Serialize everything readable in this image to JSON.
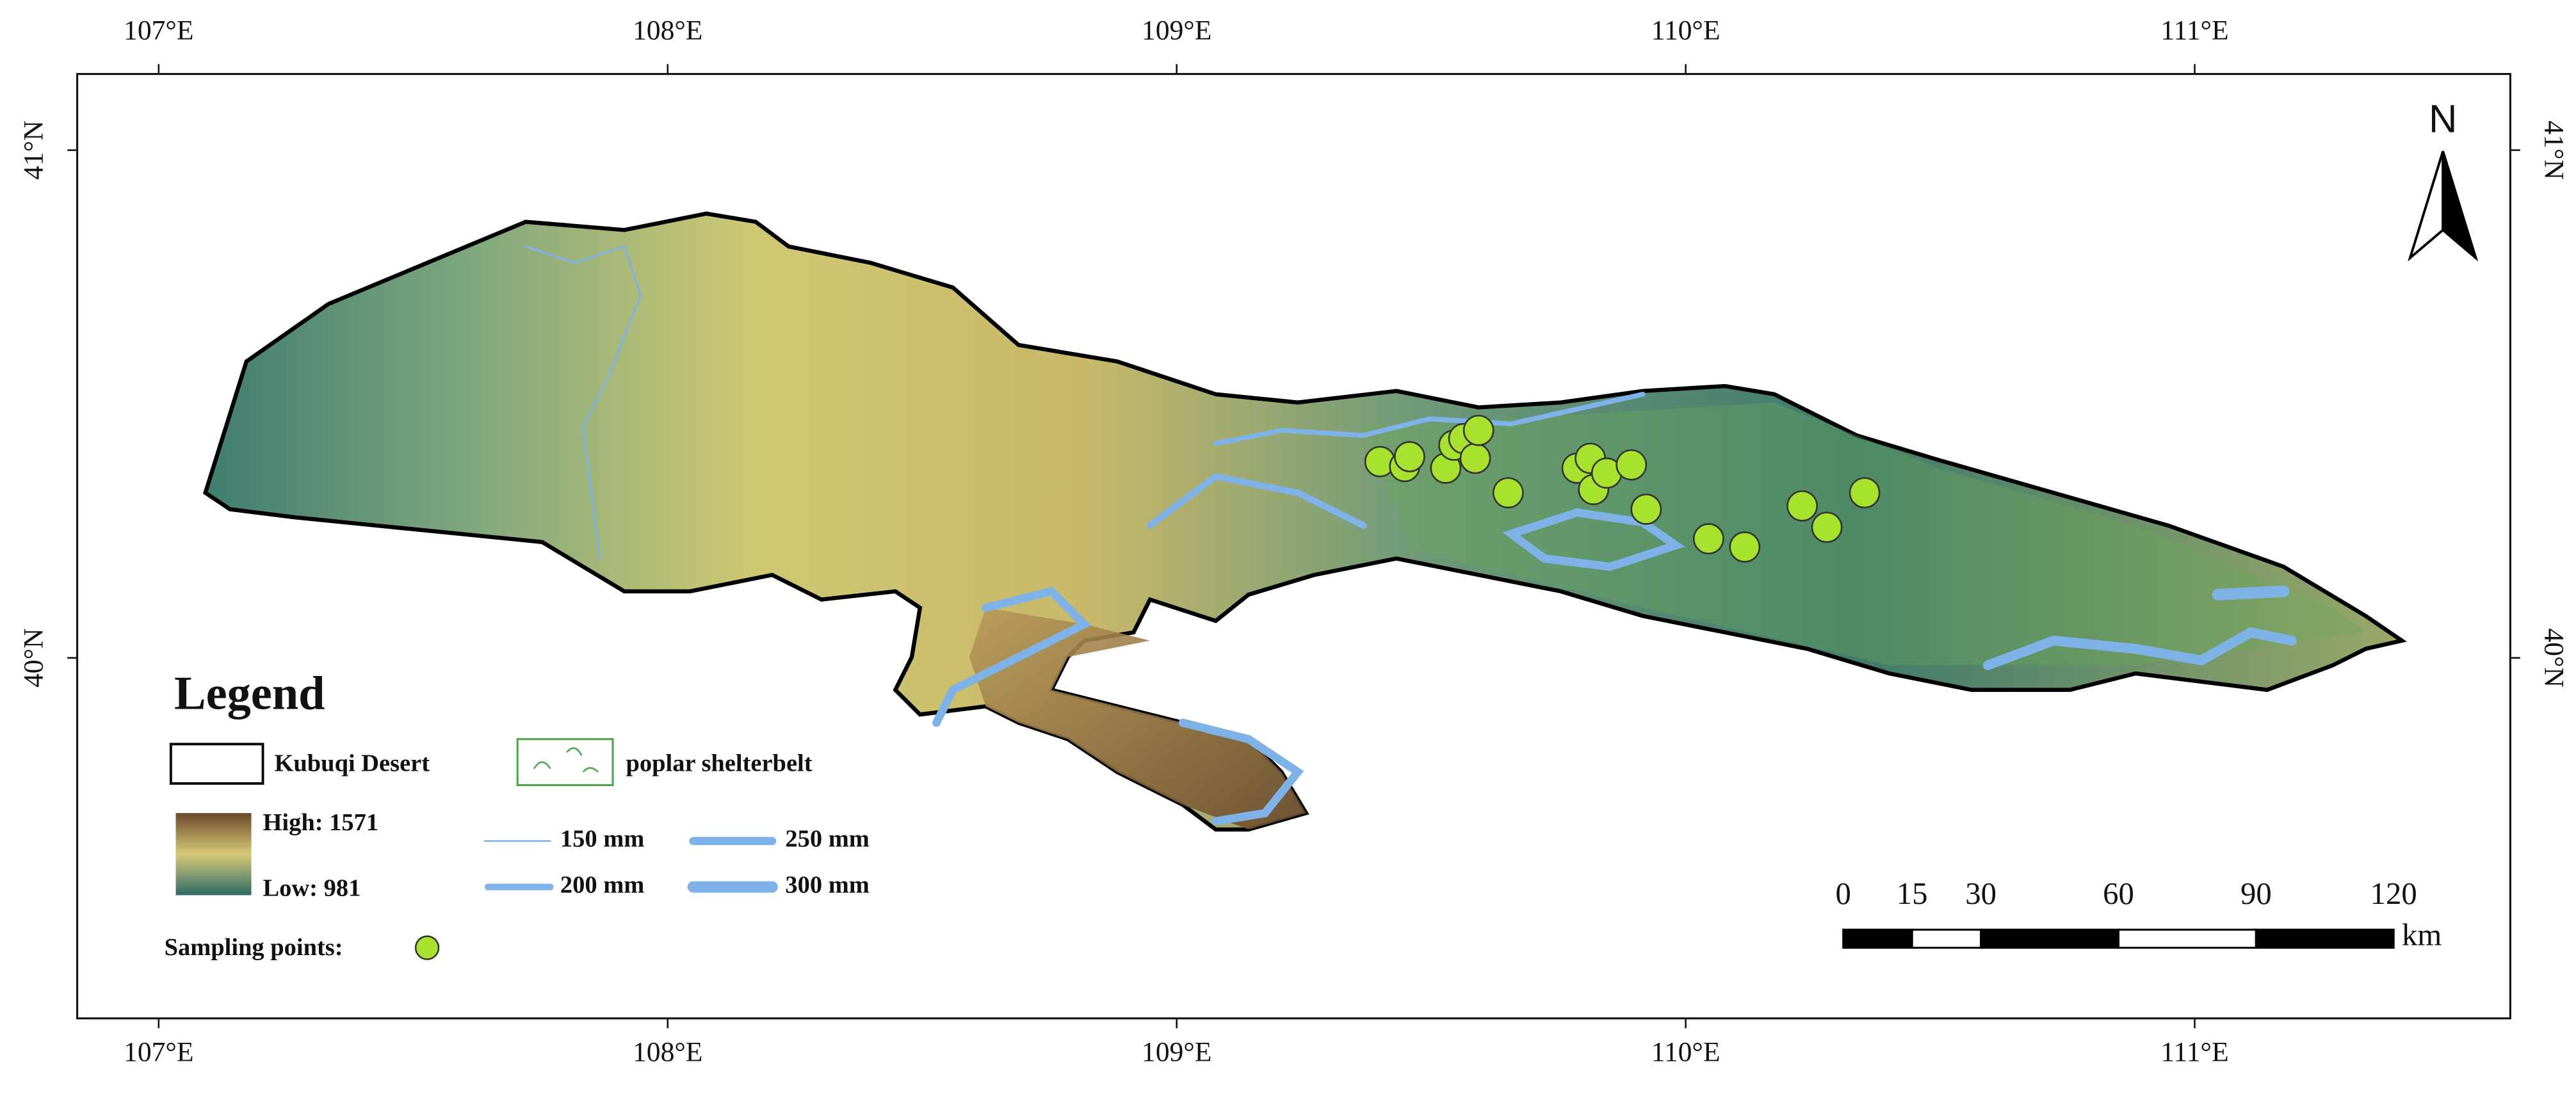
{
  "map": {
    "xlim": [
      106.84,
      111.62
    ],
    "ylim": [
      39.29,
      41.15
    ],
    "lon_ticks": [
      {
        "value": 107,
        "label": "107°E"
      },
      {
        "value": 108,
        "label": "108°E"
      },
      {
        "value": 109,
        "label": "109°E"
      },
      {
        "value": 110,
        "label": "110°E"
      },
      {
        "value": 111,
        "label": "111°E"
      }
    ],
    "lat_ticks": [
      {
        "value": 41,
        "label": "41°N"
      },
      {
        "value": 40,
        "label": "40°N"
      }
    ],
    "north_arrow": "N",
    "legend": {
      "title": "Legend",
      "boundary": "Kubuqi Desert",
      "shelterbelt": "poplar shelterbelt",
      "elevation_high": "High: 1571",
      "elevation_low": "Low: 981",
      "isohyets": [
        "150 mm",
        "200 mm",
        "250 mm",
        "300 mm"
      ],
      "sampling_points": "Sampling points:"
    },
    "scale_bar": {
      "ticks": [
        0,
        15,
        30,
        60,
        90,
        120
      ],
      "unit": "km"
    }
  }
}
